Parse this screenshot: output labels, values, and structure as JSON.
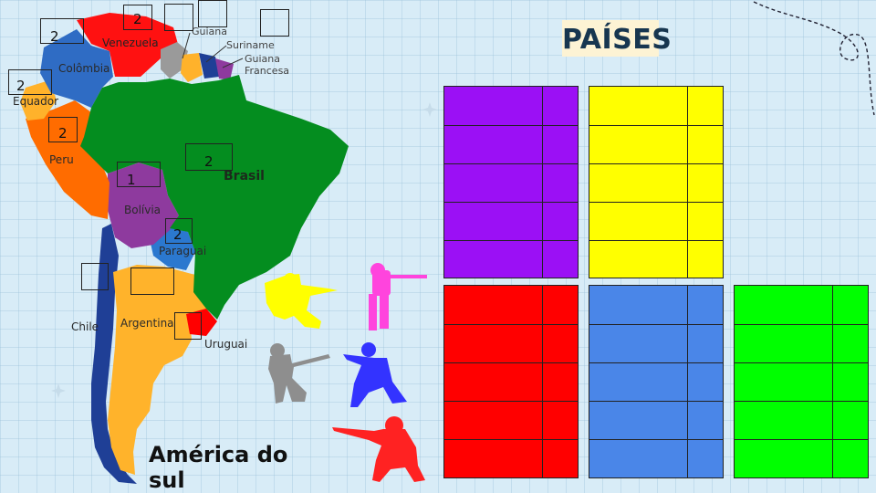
{
  "title": "PAÍSES",
  "subtitle": "América do sul",
  "countries": {
    "venezuela": "Venezuela",
    "colombia": "Colômbia",
    "equador": "Equador",
    "peru": "Peru",
    "bolivia": "Bolívia",
    "brasil": "Brasil",
    "paraguai": "Paraguai",
    "chile": "Chile",
    "argentina": "Argentina",
    "uruguai": "Uruguai",
    "guiana": "Guiana",
    "suriname": "Suriname",
    "guiana_francesa": "Guiana Francesa"
  },
  "answer_boxes": [
    {
      "id": "colombia-box",
      "value": "2"
    },
    {
      "id": "venezuela-box",
      "value": "2"
    },
    {
      "id": "guiana-box",
      "value": ""
    },
    {
      "id": "suriname-box",
      "value": ""
    },
    {
      "id": "guiana-francesa-box",
      "value": ""
    },
    {
      "id": "equador-box",
      "value": "2"
    },
    {
      "id": "peru-box",
      "value": "2"
    },
    {
      "id": "brasil-box",
      "value": "2"
    },
    {
      "id": "bolivia-box",
      "value": "1"
    },
    {
      "id": "paraguai-box",
      "value": "2"
    },
    {
      "id": "chile-box",
      "value": ""
    },
    {
      "id": "argentina-box",
      "value": ""
    },
    {
      "id": "uruguai-box",
      "value": ""
    }
  ],
  "team_colors": {
    "purple": "#9b10f5",
    "yellow": "#ffff00",
    "red": "#ff0000",
    "blue": "#4a86e8",
    "green": "#00ff00"
  },
  "silhouette_colors": {
    "yellow": "#ffff00",
    "pink": "#ff44dd",
    "gray": "#8e8e8e",
    "blue": "#3333ff",
    "red": "#ff2222"
  }
}
